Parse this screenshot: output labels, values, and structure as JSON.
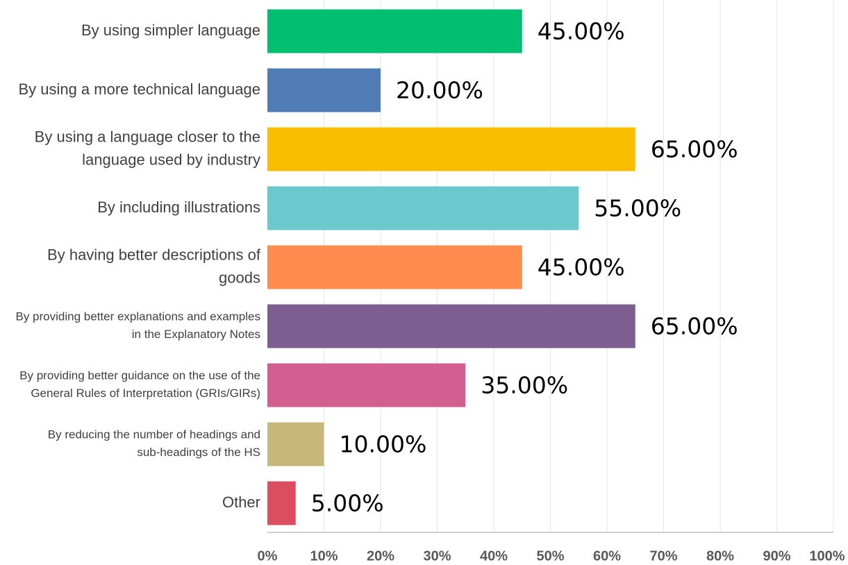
{
  "chart_data": {
    "type": "hbar",
    "categories": [
      "By using simpler language",
      "By using a more technical language",
      "By using a language closer to the language used by industry",
      "By including illustrations",
      "By having better descriptions of goods",
      "By providing better explanations and examples in the Explanatory Notes",
      "By providing better guidance on the use of the General Rules of Interpretation (GRIs/GIRs)",
      "By reducing the number of headings and sub-headings of the HS",
      "Other"
    ],
    "values": [
      45,
      20,
      65,
      55,
      45,
      65,
      35,
      10,
      5
    ],
    "value_labels": [
      "45.00%",
      "20.00%",
      "65.00%",
      "55.00%",
      "45.00%",
      "65.00%",
      "35.00%",
      "10.00%",
      "5.00%"
    ],
    "colors": [
      "#00bf6f",
      "#507cb6",
      "#f9be00",
      "#6bc8cd",
      "#ff8b4f",
      "#7d5e90",
      "#d25f90",
      "#c7b879",
      "#dc4e5f"
    ],
    "xlim": [
      0,
      100
    ],
    "xticks": [
      {
        "value": 0,
        "label": "0%"
      },
      {
        "value": 10,
        "label": "10%"
      },
      {
        "value": 20,
        "label": "20%"
      },
      {
        "value": 30,
        "label": "30%"
      },
      {
        "value": 40,
        "label": "40%"
      },
      {
        "value": 50,
        "label": "50%"
      },
      {
        "value": 60,
        "label": "60%"
      },
      {
        "value": 70,
        "label": "70%"
      },
      {
        "value": 80,
        "label": "80%"
      },
      {
        "value": 90,
        "label": "90%"
      },
      {
        "value": 100,
        "label": "100%"
      }
    ],
    "grid": true
  }
}
